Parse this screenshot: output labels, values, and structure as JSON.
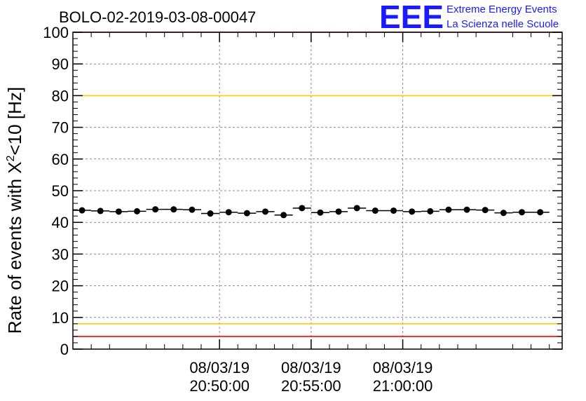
{
  "header": {
    "run_id": "BOLO-02-2019-03-08-00047",
    "logo_text": "EEE",
    "logo_line1": "Extreme Energy Events",
    "logo_line2": "La Scienza nelle Scuole"
  },
  "colors": {
    "red_limit": "#ff0000",
    "yellow_limit": "#ffcc00",
    "data": "#000000",
    "grid": "#888888",
    "logo": "#1a1aff"
  },
  "chart_data": {
    "type": "scatter",
    "title": "BOLO-02-2019-03-08-00047",
    "ylabel_prefix": "Rate of events with X",
    "ylabel_sup": "2",
    "ylabel_suffix": "<10 [Hz]",
    "xlabel": "",
    "ylim": [
      0,
      100
    ],
    "xlim_seconds": [
      0,
      1602
    ],
    "y_ticks": [
      "0",
      "10",
      "20",
      "30",
      "40",
      "50",
      "60",
      "70",
      "80",
      "90",
      "100"
    ],
    "x_ticks": [
      {
        "seconds": 480,
        "date": "08/03/19",
        "time": "20:50:00"
      },
      {
        "seconds": 780,
        "date": "08/03/19",
        "time": "20:55:00"
      },
      {
        "seconds": 1080,
        "date": "08/03/19",
        "time": "21:00:00"
      }
    ],
    "bin_width_seconds": 60,
    "series": [
      {
        "name": "Rate",
        "x_seconds": [
          30,
          90,
          150,
          210,
          270,
          330,
          390,
          450,
          510,
          570,
          630,
          690,
          750,
          810,
          870,
          930,
          990,
          1050,
          1110,
          1170,
          1230,
          1290,
          1350,
          1410,
          1470,
          1530
        ],
        "values": [
          43.8,
          43.6,
          43.4,
          43.5,
          44.1,
          44.1,
          44.0,
          42.8,
          43.2,
          42.9,
          43.4,
          42.3,
          44.5,
          43.1,
          43.4,
          44.5,
          43.7,
          43.7,
          43.4,
          43.5,
          44.0,
          44.0,
          43.9,
          43.0,
          43.2,
          43.2
        ]
      }
    ],
    "reference_lines": [
      {
        "name": "upper-red-limit",
        "value": 100,
        "color": "#ff0000"
      },
      {
        "name": "upper-yellow-limit",
        "value": 80,
        "color": "#ffcc00"
      },
      {
        "name": "lower-yellow-limit",
        "value": 8,
        "color": "#ffcc00"
      },
      {
        "name": "lower-red-limit",
        "value": 4,
        "color": "#ff0000"
      }
    ],
    "grid": true
  }
}
